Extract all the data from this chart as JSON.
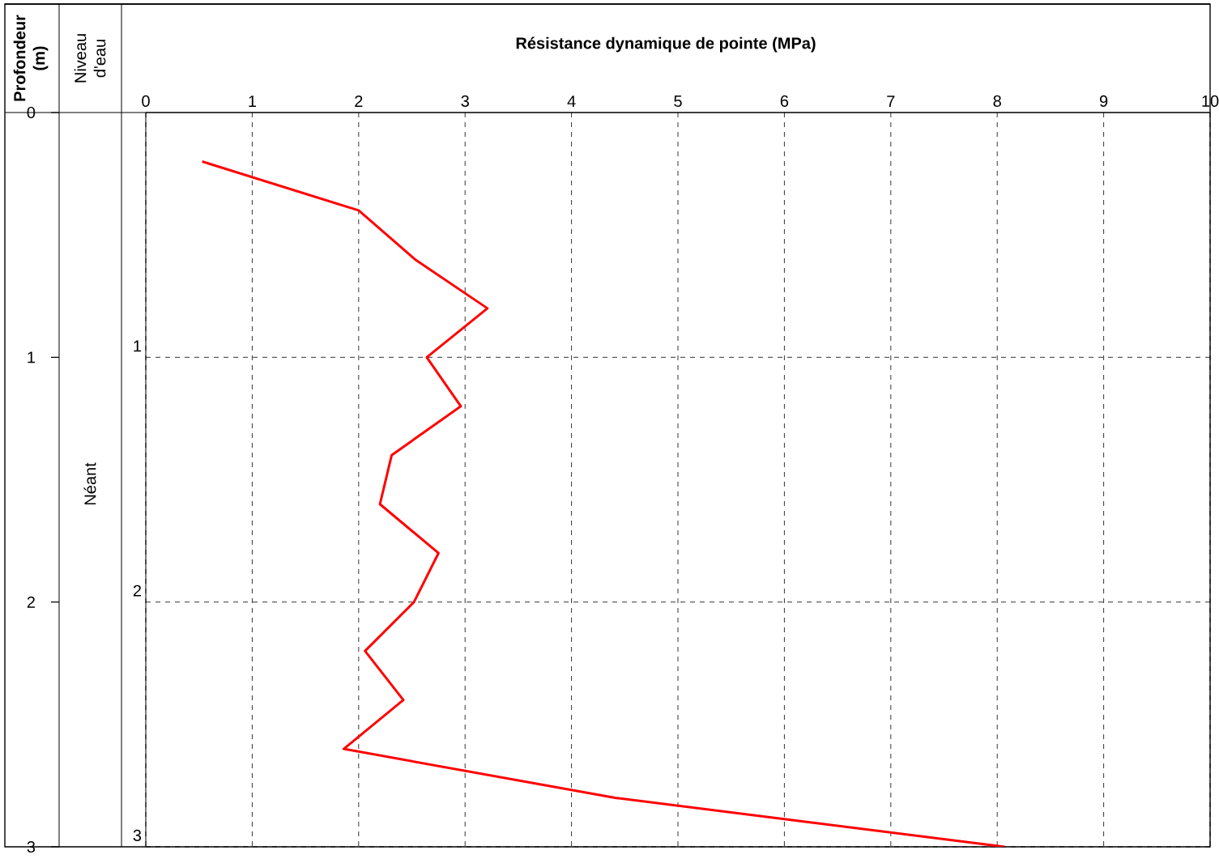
{
  "chart_data": {
    "type": "line",
    "xlabel": "Résistance dynamique de pointe (MPa)",
    "ylabel": "Profondeur (m)",
    "annotations": [
      "Niveau d'eau",
      "Néant"
    ],
    "series": [
      {
        "color": "#ff0000",
        "x": [
          0.53,
          2.0,
          2.53,
          3.21,
          2.64,
          2.96,
          2.31,
          2.2,
          2.75,
          2.52,
          2.06,
          2.42,
          1.86,
          4.41,
          8.07
        ],
        "values": [
          0.2,
          0.4,
          0.6,
          0.8,
          1.0,
          1.2,
          1.4,
          1.6,
          1.8,
          2.0,
          2.2,
          2.4,
          2.6,
          2.8,
          3.0
        ]
      }
    ],
    "xlim": [
      0,
      10
    ],
    "xticks": [
      0,
      1,
      2,
      3,
      4,
      5,
      6,
      7,
      8,
      9,
      10
    ],
    "ylim": [
      3,
      0
    ],
    "yticks": [
      0,
      1,
      2,
      3
    ],
    "y2lim": [
      3,
      0
    ],
    "y2ticks": [
      1,
      2,
      3
    ],
    "grid": true,
    "line_style": "solid"
  }
}
